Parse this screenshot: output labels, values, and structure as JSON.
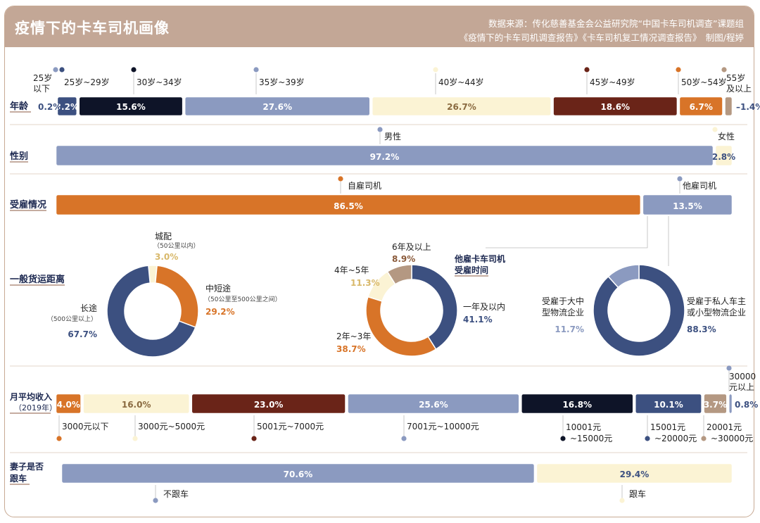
{
  "header": {
    "title": "疫情下的卡车司机画像",
    "source_line1": "数据来源：传化慈善基金会公益研究院“中国卡车司机调查”课题组",
    "source_line2": "《疫情下的卡车司机调查报告》《卡车司机复工情况调查报告》　制图/程婷"
  },
  "colors": {
    "navy": "#3c5080",
    "blue_grey": "#8b9ac0",
    "black": "#0e1428",
    "cream": "#fbf3d4",
    "maroon": "#6a2418",
    "orange": "#d87428",
    "taupe": "#b49882",
    "brown_label": "#8a5a3a"
  },
  "chart_data": [
    {
      "type": "bar",
      "orientation": "horizontal-stacked",
      "title": "年龄",
      "categories": [
        "25岁以下",
        "25岁~29岁",
        "30岁~34岁",
        "35岁~39岁",
        "40岁~44岁",
        "45岁~49岁",
        "50岁~54岁",
        "55岁及以上"
      ],
      "values": [
        0.2,
        3.2,
        15.6,
        27.6,
        26.7,
        18.6,
        6.7,
        1.4
      ],
      "value_labels": [
        "0.2%",
        "3.2%",
        "15.6%",
        "27.6%",
        "26.7%",
        "18.6%",
        "6.7%",
        "1.4%"
      ],
      "unit": "%"
    },
    {
      "type": "bar",
      "orientation": "horizontal-stacked",
      "title": "性别",
      "categories": [
        "男性",
        "女性"
      ],
      "values": [
        97.2,
        2.8
      ],
      "value_labels": [
        "97.2%",
        "2.8%"
      ],
      "unit": "%"
    },
    {
      "type": "bar",
      "orientation": "horizontal-stacked",
      "title": "受雇情况",
      "categories": [
        "自雇司机",
        "他雇司机"
      ],
      "values": [
        86.5,
        13.5
      ],
      "value_labels": [
        "86.5%",
        "13.5%"
      ],
      "unit": "%"
    },
    {
      "type": "pie",
      "donut": true,
      "title": "一般货运距离",
      "categories": [
        "城配",
        "中短途",
        "长途"
      ],
      "notes": [
        "（50公里以内）",
        "（50公里至500公里之间）",
        "（500公里以上）"
      ],
      "values": [
        3.0,
        29.2,
        67.7
      ],
      "value_labels": [
        "3.0%",
        "29.2%",
        "67.7%"
      ],
      "unit": "%"
    },
    {
      "type": "pie",
      "donut": true,
      "title": "他雇卡车司机受雇时间",
      "categories": [
        "一年及以内",
        "2年~3年",
        "4年~5年",
        "6年及以上"
      ],
      "values": [
        41.1,
        38.7,
        11.3,
        8.9
      ],
      "value_labels": [
        "41.1%",
        "38.7%",
        "11.3%",
        "8.9%"
      ],
      "unit": "%"
    },
    {
      "type": "pie",
      "donut": true,
      "title": "",
      "categories": [
        "受雇于私人车主或小型物流企业",
        "受雇于大中型物流企业"
      ],
      "values": [
        88.3,
        11.7
      ],
      "value_labels": [
        "88.3%",
        "11.7%"
      ],
      "unit": "%"
    },
    {
      "type": "bar",
      "orientation": "horizontal-stacked",
      "title": "月平均收入（2019年）",
      "categories": [
        "3000元以下",
        "3000元~5000元",
        "5001元~7000元",
        "7001元~10000元",
        "10001元~15000元",
        "15001元~20000元",
        "20001元~30000元",
        "30000元以上"
      ],
      "values": [
        4.0,
        16.0,
        23.0,
        25.6,
        16.8,
        10.1,
        3.7,
        0.8
      ],
      "value_labels": [
        "4.0%",
        "16.0%",
        "23.0%",
        "25.6%",
        "16.8%",
        "10.1%",
        "3.7%",
        "0.8%"
      ],
      "unit": "%"
    },
    {
      "type": "bar",
      "orientation": "horizontal-stacked",
      "title": "妻子是否跟车",
      "categories": [
        "不跟车",
        "跟车"
      ],
      "values": [
        70.6,
        29.4
      ],
      "value_labels": [
        "70.6%",
        "29.4%"
      ],
      "unit": "%"
    }
  ]
}
